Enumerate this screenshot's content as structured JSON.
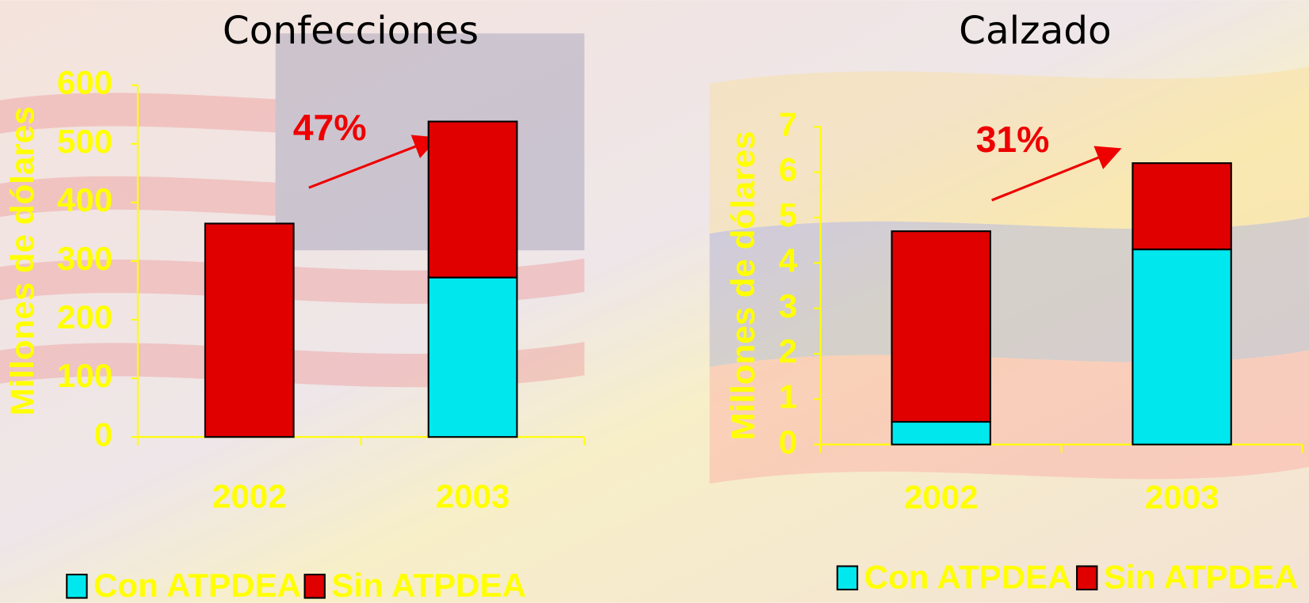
{
  "chart_data": [
    {
      "type": "bar",
      "stacked": true,
      "title": "Confecciones",
      "ylabel": "Millones de dólares",
      "categories": [
        "2002",
        "2003"
      ],
      "series": [
        {
          "name": "Con ATPDEA",
          "color": "#00e8ee",
          "values": [
            0,
            272
          ]
        },
        {
          "name": "Sin ATPDEA",
          "color": "#e00000",
          "values": [
            364,
            266
          ]
        }
      ],
      "ylim": [
        0,
        600
      ],
      "yticks": [
        0,
        100,
        200,
        300,
        400,
        500,
        600
      ],
      "annotations": [
        "47%"
      ]
    },
    {
      "type": "bar",
      "stacked": true,
      "title": "Calzado",
      "ylabel": "Millones de dólares",
      "categories": [
        "2002",
        "2003"
      ],
      "series": [
        {
          "name": "Con ATPDEA",
          "color": "#00e8ee",
          "values": [
            0.5,
            4.3
          ]
        },
        {
          "name": "Sin ATPDEA",
          "color": "#e00000",
          "values": [
            4.2,
            1.9
          ]
        }
      ],
      "ylim": [
        0,
        7
      ],
      "yticks": [
        0,
        1,
        2,
        3,
        4,
        5,
        6,
        7
      ],
      "annotations": [
        "31%"
      ]
    }
  ]
}
